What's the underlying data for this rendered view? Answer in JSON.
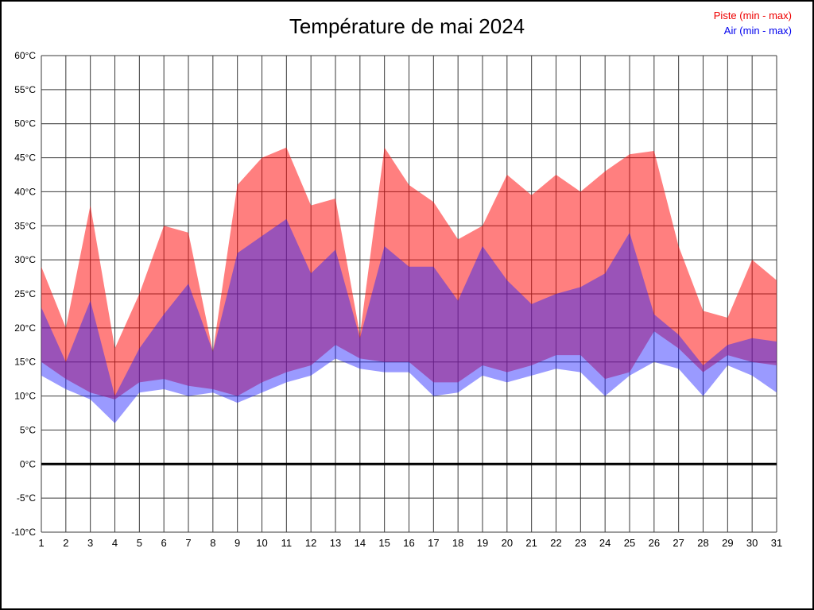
{
  "page": {
    "title": "Température de mai 2024"
  },
  "legend": {
    "piste": {
      "label": "Piste (min - max)",
      "color": "#ee0000"
    },
    "air": {
      "label": "Air (min - max)",
      "color": "#0000ee"
    }
  },
  "chart_data": {
    "type": "area",
    "title": "Température de mai 2024",
    "xlabel": "",
    "ylabel": "",
    "x": [
      1,
      2,
      3,
      4,
      5,
      6,
      7,
      8,
      9,
      10,
      11,
      12,
      13,
      14,
      15,
      16,
      17,
      18,
      19,
      20,
      21,
      22,
      23,
      24,
      25,
      26,
      27,
      28,
      29,
      30,
      31
    ],
    "ylim": [
      -10,
      60
    ],
    "y_ticks": [
      -10,
      -5,
      0,
      5,
      10,
      15,
      20,
      25,
      30,
      35,
      40,
      45,
      50,
      55,
      60
    ],
    "y_unit": "°C",
    "grid": true,
    "grid_color": "#3a3a3a",
    "zero_line": true,
    "zero_line_color": "#000000",
    "legend_position": "top-right",
    "bands": [
      {
        "name": "Piste (min - max)",
        "data_name": "piste-band",
        "fill": "rgba(255,10,10,0.52)",
        "appearance_hex": "#ff8080",
        "max": [
          29,
          20,
          38,
          17,
          25,
          35,
          34,
          16.5,
          41,
          45,
          46.5,
          38,
          39,
          19,
          46.5,
          41,
          38.5,
          33,
          35,
          42.5,
          39.5,
          42.5,
          40,
          43,
          45.5,
          46,
          32,
          22.5,
          21.5,
          30,
          27
        ],
        "min": [
          15,
          12.5,
          10.5,
          9.5,
          12,
          12.5,
          11.5,
          11,
          10,
          12,
          13.5,
          14.5,
          17.5,
          15.5,
          15,
          15,
          12,
          12,
          14.5,
          13.5,
          14.5,
          16,
          16,
          12.5,
          13.5,
          19.5,
          17,
          13.5,
          16,
          15,
          14.5
        ]
      },
      {
        "name": "Air (min - max)",
        "data_name": "air-band",
        "fill": "rgba(30,30,255,0.45)",
        "appearance_hex": "#9a9aff",
        "overlap_hex": "#9a54b9",
        "max": [
          23,
          15,
          24,
          10,
          17,
          22,
          26.5,
          16.5,
          31,
          33.5,
          36,
          28,
          31.5,
          18.5,
          32,
          29,
          29,
          24,
          32,
          27,
          23.5,
          25,
          26,
          28,
          34,
          22,
          19,
          14.5,
          17.5,
          18.5,
          18
        ],
        "min": [
          13,
          11,
          9.5,
          6,
          10.5,
          11,
          10,
          10.5,
          9,
          10.5,
          12,
          13,
          15.5,
          14,
          13.5,
          13.5,
          10,
          10.5,
          13,
          12,
          13,
          14,
          13.5,
          10,
          13,
          15,
          14,
          10,
          14.5,
          13,
          10.5
        ]
      }
    ]
  }
}
